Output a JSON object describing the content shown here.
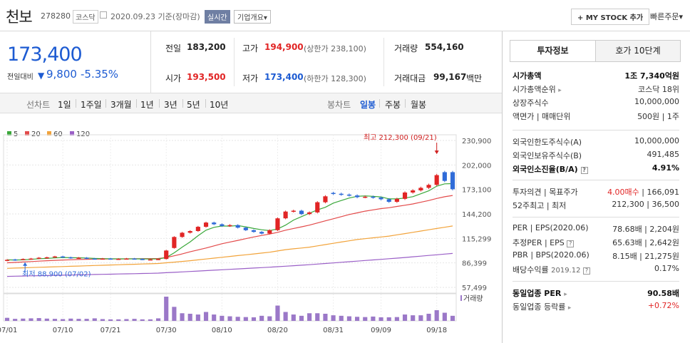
{
  "header": {
    "name": "천보",
    "code": "278280",
    "market": "코스닥",
    "date": "2020.09.23  기준(장마감)",
    "realtime": "실시간",
    "overview": "기업개요",
    "overview_arrow": "▾",
    "mystock": "+ MY STOCK 추가",
    "fast_order": "빠른주문",
    "fast_arrow": "▾"
  },
  "price": {
    "now": "173,400",
    "diff_label": "전일대비",
    "arrow": "▼",
    "diff": "9,800",
    "pct": "-5.35%"
  },
  "stats": {
    "prev_label": "전일",
    "prev": "183,200",
    "high_label": "고가",
    "high": "194,900",
    "upper_limit": "(상한가 238,100)",
    "volume_label": "거래량",
    "volume": "554,160",
    "open_label": "시가",
    "open": "193,500",
    "low_label": "저가",
    "low": "173,400",
    "lower_limit": "(하한가 128,300)",
    "amount_label": "거래대금",
    "amount": "99,167",
    "amount_unit": "백만"
  },
  "tabs": {
    "line_label": "선차트",
    "periods": [
      "1일",
      "1주일",
      "3개월",
      "1년",
      "3년",
      "5년",
      "10년"
    ],
    "candle_label": "봉차트",
    "candle_periods": [
      "일봉",
      "주봉",
      "월봉"
    ],
    "active_candle": "일봉"
  },
  "right": {
    "tab_invest": "투자정보",
    "tab_order": "호가 10단계",
    "mcap_label": "시가총액",
    "mcap": "1조 7,340억원",
    "mcap_rank_label": "시가총액순위",
    "mcap_rank": "코스닥 18위",
    "shares_label": "상장주식수",
    "shares": "10,000,000",
    "face_label": "액면가 | 매매단위",
    "face": "500원 | 1주",
    "foreign_limit_label": "외국인한도주식수(A)",
    "foreign_limit": "10,000,000",
    "foreign_hold_label": "외국인보유주식수(B)",
    "foreign_hold": "491,485",
    "foreign_ratio_label": "외국인소진율(B/A)",
    "foreign_ratio": "4.91%",
    "opinion_label": "투자의견",
    "target_label": "목표주가",
    "opinion": "4.00매수",
    "target": "166,091",
    "w52_label": "52주최고 | 최저",
    "w52": "212,300 | 36,500",
    "per_label": "PER | EPS(2020.06)",
    "per": "78.68배 | 2,204원",
    "eper_label": "추정PER | EPS",
    "eper": "65.63배 | 2,642원",
    "pbr_label": "PBR | BPS(2020.06)",
    "pbr": "8.15배 | 21,275원",
    "div_label": "배당수익률",
    "div_date": "2019.12",
    "div": "0.17%",
    "ind_per_label": "동일업종 PER",
    "ind_per": "90.58배",
    "ind_rate_label": "동일업종 등락률",
    "ind_rate": "+0.72%"
  },
  "chart_data": {
    "type": "candlestick",
    "legend": [
      "5",
      "20",
      "60",
      "120"
    ],
    "legend_colors": [
      "#3aa83a",
      "#e34a4a",
      "#f2a33a",
      "#9a5fc7"
    ],
    "y_ticks": [
      "230,900",
      "202,000",
      "173,100",
      "144,200",
      "115,299",
      "86,399",
      "57,499"
    ],
    "y_tick_values": [
      230900,
      202000,
      173100,
      144200,
      115299,
      86399,
      57499
    ],
    "x_ticks": [
      "07/01",
      "07/10",
      "07/21",
      "07/30",
      "08/10",
      "08/20",
      "08/31",
      "09/09",
      "09/18"
    ],
    "x_tick_index": [
      0,
      7,
      13,
      20,
      27,
      34,
      41,
      47,
      54
    ],
    "high_annot": "최고 212,300 (09/21)",
    "low_annot": "최저 88,900 (07/02)",
    "volume_label": "거래량",
    "closes": [
      90000,
      89500,
      91000,
      91500,
      92500,
      93000,
      94000,
      93000,
      92000,
      92500,
      91500,
      91000,
      91500,
      91000,
      91200,
      91500,
      91000,
      90500,
      90500,
      91000,
      101000,
      117000,
      122000,
      124000,
      129000,
      134000,
      132000,
      130000,
      131000,
      128000,
      125000,
      123000,
      121000,
      125000,
      139000,
      147000,
      148000,
      144000,
      146000,
      158000,
      165000,
      168000,
      167000,
      166000,
      164000,
      164500,
      163500,
      161500,
      158500,
      162000,
      169500,
      172000,
      175000,
      178500,
      190000,
      183200,
      173400
    ],
    "opens": [
      89000,
      90500,
      90500,
      91500,
      91500,
      92000,
      93000,
      94000,
      93000,
      92000,
      92500,
      91500,
      91000,
      91500,
      91000,
      91200,
      91500,
      91000,
      90500,
      90500,
      91000,
      104000,
      117000,
      122000,
      124000,
      129000,
      134000,
      132000,
      130000,
      131000,
      128000,
      125000,
      123000,
      121000,
      125000,
      139000,
      147000,
      148000,
      144000,
      146000,
      158000,
      169000,
      168000,
      167000,
      166000,
      164000,
      164500,
      163500,
      161500,
      158500,
      162000,
      169500,
      172000,
      175000,
      178500,
      193500,
      193500
    ],
    "volumes": [
      12,
      8,
      9,
      10,
      11,
      9,
      8,
      7,
      9,
      8,
      8,
      10,
      7,
      6,
      6,
      7,
      8,
      6,
      6,
      10,
      95,
      55,
      30,
      28,
      25,
      35,
      25,
      20,
      18,
      16,
      15,
      14,
      20,
      18,
      60,
      35,
      25,
      20,
      30,
      30,
      28,
      22,
      20,
      18,
      16,
      15,
      17,
      14,
      14,
      15,
      25,
      22,
      22,
      28,
      42,
      32,
      20
    ],
    "ma5": [
      90000,
      89800,
      90000,
      90600,
      91300,
      91700,
      92300,
      92800,
      92500,
      92400,
      92200,
      91700,
      91400,
      91300,
      91200,
      91200,
      91200,
      91100,
      91000,
      91000,
      92700,
      98300,
      105000,
      111200,
      118500,
      125000,
      128400,
      130000,
      129800,
      130500,
      129000,
      127000,
      125500,
      124500,
      126500,
      131000,
      137000,
      141000,
      145000,
      149000,
      152000,
      157000,
      160000,
      163000,
      165000,
      165500,
      165000,
      164300,
      162000,
      162000,
      163000,
      164600,
      168000,
      171500,
      177000,
      179700,
      180000
    ],
    "ma20": [
      86500,
      87000,
      87500,
      88000,
      88500,
      89000,
      89400,
      89800,
      90100,
      90400,
      90600,
      90800,
      90900,
      91000,
      91100,
      91200,
      91300,
      91400,
      91500,
      91600,
      92800,
      94800,
      97000,
      99500,
      101800,
      104000,
      106500,
      109000,
      111000,
      113000,
      115000,
      117000,
      118800,
      120500,
      122500,
      125000,
      127000,
      129000,
      131000,
      133500,
      136000,
      138500,
      141000,
      143500,
      145500,
      147500,
      149000,
      150500,
      151500,
      153000,
      154500,
      156000,
      158000,
      160000,
      162500,
      164500,
      166000
    ],
    "ma60": [
      80000,
      80300,
      80600,
      80900,
      81200,
      81500,
      81800,
      82100,
      82400,
      82700,
      83000,
      83300,
      83600,
      83900,
      84200,
      84500,
      84800,
      85100,
      85400,
      85700,
      86500,
      87300,
      88100,
      89000,
      90000,
      91000,
      92000,
      93000,
      94000,
      95000,
      96000,
      97000,
      98000,
      99000,
      100500,
      102000,
      103000,
      104000,
      105000,
      106500,
      108000,
      109500,
      111000,
      112500,
      114000,
      115000,
      116000,
      117000,
      118000,
      119500,
      121000,
      122500,
      124000,
      125500,
      127000,
      128500,
      130000
    ],
    "ma120": [
      70500,
      70700,
      70900,
      71100,
      71300,
      71500,
      71700,
      71900,
      72100,
      72300,
      72500,
      72700,
      72900,
      73100,
      73300,
      73500,
      73700,
      73900,
      74100,
      74300,
      74800,
      75300,
      75800,
      76300,
      76800,
      77300,
      77800,
      78300,
      78800,
      79300,
      79800,
      80300,
      80800,
      81300,
      81900,
      82500,
      83100,
      83700,
      84300,
      85000,
      85700,
      86400,
      87100,
      87800,
      88500,
      89200,
      89900,
      90600,
      91300,
      92000,
      92800,
      93600,
      94400,
      95200,
      96000,
      96800,
      97600
    ]
  }
}
